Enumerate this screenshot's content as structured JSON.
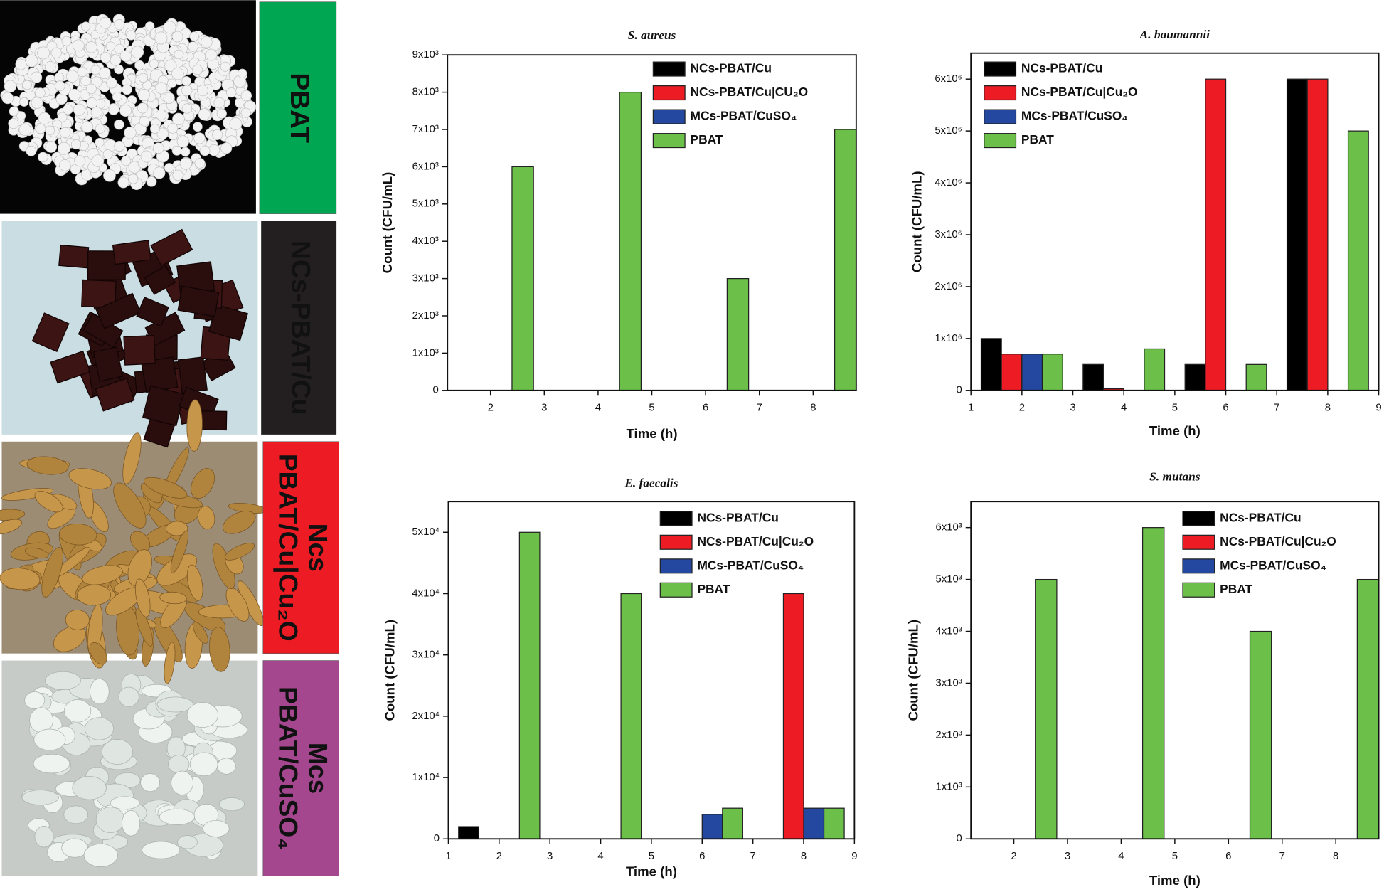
{
  "panels": [
    {
      "label": [
        "PBAT"
      ],
      "color": "#00a651"
    },
    {
      "label": [
        "NCs-PBAT/Cu"
      ],
      "color": "#231f20"
    },
    {
      "label": [
        "Ncs",
        "PBAT/Cu|Cu₂O"
      ],
      "color": "#ed1c24"
    },
    {
      "label": [
        "Mcs",
        "PBAT/CuSO₄"
      ],
      "color": "#a5478f"
    }
  ],
  "chart_data": [
    {
      "type": "bar",
      "title": "S. aureus",
      "x_label": "Time (h)",
      "y_label": "Count (CFU/mL)",
      "x": [
        2,
        4,
        6,
        8
      ],
      "xlim": [
        1.2,
        8.8
      ],
      "xticks": [
        2,
        3,
        4,
        5,
        6,
        7,
        8
      ],
      "ylim": [
        0,
        9000
      ],
      "yticks": [
        0,
        {
          "value": 1000,
          "label": "1x10³"
        },
        {
          "value": 2000,
          "label": "2x10³"
        },
        {
          "value": 3000,
          "label": "3x10³"
        },
        {
          "value": 4000,
          "label": "4x10³"
        },
        {
          "value": 5000,
          "label": "5x10³"
        },
        {
          "value": 6000,
          "label": "6x10³"
        },
        {
          "value": 7000,
          "label": "7x10³"
        },
        {
          "value": 8000,
          "label": "8x10³"
        },
        {
          "value": 9000,
          "label": "9x10³"
        }
      ],
      "series": [
        {
          "name": "NCs-PBAT/Cu",
          "color": "#000000",
          "values": [
            0,
            0,
            0,
            0
          ]
        },
        {
          "name": "NCs-PBAT/Cu|CU₂O",
          "color": "#ed1c24",
          "values": [
            0,
            0,
            0,
            0
          ]
        },
        {
          "name": "MCs-PBAT/CuSO₄",
          "color": "#2447a0",
          "values": [
            0,
            0,
            0,
            0
          ]
        },
        {
          "name": "PBAT",
          "color": "#6cc04a",
          "values": [
            6000,
            8000,
            3000,
            7000
          ]
        }
      ]
    },
    {
      "type": "bar",
      "title": "A. baumannii",
      "x_label": "Time (h)",
      "y_label": "Count (CFU/mL)",
      "x": [
        2,
        4,
        6,
        8
      ],
      "xlim": [
        1,
        9
      ],
      "xticks": [
        1,
        2,
        3,
        4,
        5,
        6,
        7,
        8,
        9
      ],
      "ylim": [
        0,
        6500000
      ],
      "yticks": [
        0,
        {
          "value": 1000000,
          "label": "1x10⁶"
        },
        {
          "value": 2000000,
          "label": "2x10⁶"
        },
        {
          "value": 3000000,
          "label": "3x10⁶"
        },
        {
          "value": 4000000,
          "label": "4x10⁶"
        },
        {
          "value": 5000000,
          "label": "5x10⁶"
        },
        {
          "value": 6000000,
          "label": "6x10⁶"
        }
      ],
      "series": [
        {
          "name": "NCs-PBAT/Cu",
          "color": "#000000",
          "values": [
            1000000,
            500000,
            500000,
            6000000
          ]
        },
        {
          "name": "NCs-PBAT/Cu|Cu₂O",
          "color": "#ed1c24",
          "values": [
            700000,
            30000,
            6000000,
            6000000
          ]
        },
        {
          "name": "MCs-PBAT/CuSO₄",
          "color": "#2447a0",
          "values": [
            700000,
            0,
            0,
            0
          ]
        },
        {
          "name": "PBAT",
          "color": "#6cc04a",
          "values": [
            700000,
            800000,
            500000,
            5000000
          ]
        }
      ]
    },
    {
      "type": "bar",
      "title": "E. faecalis",
      "x_label": "Time (h)",
      "y_label": "Count (CFU/mL)",
      "x": [
        2,
        4,
        6,
        8
      ],
      "xlim": [
        1,
        9
      ],
      "xticks": [
        1,
        2,
        3,
        4,
        5,
        6,
        7,
        8,
        9
      ],
      "ylim": [
        0,
        55000
      ],
      "yticks": [
        0,
        {
          "value": 10000,
          "label": "1x10⁴"
        },
        {
          "value": 20000,
          "label": "2x10⁴"
        },
        {
          "value": 30000,
          "label": "3x10⁴"
        },
        {
          "value": 40000,
          "label": "4x10⁴"
        },
        {
          "value": 50000,
          "label": "5x10⁴"
        }
      ],
      "series": [
        {
          "name": "NCs-PBAT/Cu",
          "color": "#000000",
          "values": [
            2000,
            0,
            0,
            0
          ]
        },
        {
          "name": "NCs-PBAT/Cu|Cu₂O",
          "color": "#ed1c24",
          "values": [
            0,
            0,
            0,
            40000
          ]
        },
        {
          "name": "MCs-PBAT/CuSO₄",
          "color": "#2447a0",
          "values": [
            0,
            0,
            4000,
            5000
          ]
        },
        {
          "name": "PBAT",
          "color": "#6cc04a",
          "values": [
            50000,
            40000,
            5000,
            5000
          ]
        }
      ]
    },
    {
      "type": "bar",
      "title": "S. mutans",
      "x_label": "Time (h)",
      "y_label": "Count (CFU/mL)",
      "x": [
        2,
        4,
        6,
        8
      ],
      "xlim": [
        1.2,
        8.8
      ],
      "xticks": [
        2,
        3,
        4,
        5,
        6,
        7,
        8
      ],
      "ylim": [
        0,
        6500
      ],
      "yticks": [
        0,
        {
          "value": 1000,
          "label": "1x10³"
        },
        {
          "value": 2000,
          "label": "2x10³"
        },
        {
          "value": 3000,
          "label": "3x10³"
        },
        {
          "value": 4000,
          "label": "4x10³"
        },
        {
          "value": 5000,
          "label": "5x10³"
        },
        {
          "value": 6000,
          "label": "6x10³"
        }
      ],
      "series": [
        {
          "name": "NCs-PBAT/Cu",
          "color": "#000000",
          "values": [
            0,
            0,
            0,
            0
          ]
        },
        {
          "name": "NCs-PBAT/Cu|Cu₂O",
          "color": "#ed1c24",
          "values": [
            0,
            0,
            0,
            0
          ]
        },
        {
          "name": "MCs-PBAT/CuSO₄",
          "color": "#2447a0",
          "values": [
            0,
            0,
            0,
            0
          ]
        },
        {
          "name": "PBAT",
          "color": "#6cc04a",
          "values": [
            5000,
            6000,
            4000,
            5000
          ]
        }
      ]
    }
  ]
}
